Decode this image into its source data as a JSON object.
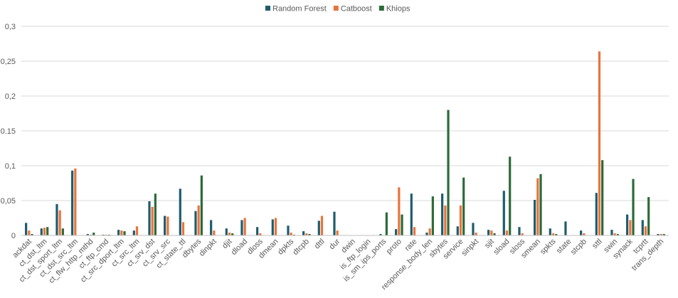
{
  "chart_data": {
    "type": "bar",
    "title": "",
    "xlabel": "",
    "ylabel": "",
    "ylim": [
      0,
      0.3
    ],
    "yticks": [
      "0",
      "0,05",
      "0,1",
      "0.15",
      "0,2",
      "0,25",
      "0,3"
    ],
    "grid": true,
    "legend_position": "top-center",
    "categories": [
      "ackdat",
      "ct_dst_ltm",
      "ct_dst_sport_ltm",
      "ct_dst_src_ltm",
      "ct_flw_http_mthd",
      "ct_ftp_cmd",
      "ct_src_dport_ltm",
      "ct_src_ltm",
      "ct_srv_dst",
      "ct_srv_src",
      "ct_state_ttl",
      "dbytes",
      "dinpkt",
      "djit",
      "dload",
      "dloss",
      "dmean",
      "dpkts",
      "dtcpb",
      "dttl",
      "dur",
      "dwin",
      "is_ftp_login",
      "is_sm_ips_ports",
      "proto",
      "rate",
      "response_body_len",
      "sbytes",
      "service",
      "sinpkt",
      "sjit",
      "sload",
      "sloss",
      "smean",
      "spkts",
      "state",
      "stcpb",
      "sttl",
      "swin",
      "synack",
      "tcprtt",
      "trans_depth"
    ],
    "series": [
      {
        "name": "Random Forest",
        "color": "#1f5c6e",
        "values": [
          0.018,
          0.01,
          0.045,
          0.093,
          0.002,
          0.001,
          0.008,
          0.007,
          0.049,
          0.028,
          0.067,
          0.035,
          0.022,
          0.01,
          0.022,
          0.012,
          0.023,
          0.014,
          0.006,
          0.021,
          0.034,
          0.0,
          0.0,
          0.002,
          0.009,
          0.06,
          0.004,
          0.06,
          0.013,
          0.018,
          0.008,
          0.064,
          0.012,
          0.051,
          0.01,
          0.02,
          0.007,
          0.061,
          0.008,
          0.03,
          0.022,
          0.002
        ]
      },
      {
        "name": "Catboost",
        "color": "#e8743b",
        "values": [
          0.007,
          0.011,
          0.036,
          0.096,
          0.001,
          0.001,
          0.007,
          0.013,
          0.041,
          0.027,
          0.019,
          0.043,
          0.007,
          0.004,
          0.025,
          0.003,
          0.025,
          0.004,
          0.003,
          0.028,
          0.007,
          0.0,
          0.0,
          0.0,
          0.069,
          0.012,
          0.01,
          0.043,
          0.043,
          0.004,
          0.007,
          0.007,
          0.003,
          0.082,
          0.003,
          0.0,
          0.003,
          0.264,
          0.003,
          0.022,
          0.013,
          0.002
        ]
      },
      {
        "name": "Khiops",
        "color": "#2d6a3a",
        "values": [
          0.002,
          0.012,
          0.01,
          0.0,
          0.004,
          0.001,
          0.006,
          0.0,
          0.06,
          0.0,
          0.0,
          0.086,
          0.0,
          0.003,
          0.0,
          0.0,
          0.0,
          0.001,
          0.002,
          0.0,
          0.0,
          0.0,
          0.0,
          0.033,
          0.03,
          0.0,
          0.056,
          0.18,
          0.083,
          0.0,
          0.003,
          0.113,
          0.0,
          0.088,
          0.002,
          0.0,
          0.0,
          0.108,
          0.002,
          0.081,
          0.055,
          0.002
        ]
      }
    ]
  }
}
